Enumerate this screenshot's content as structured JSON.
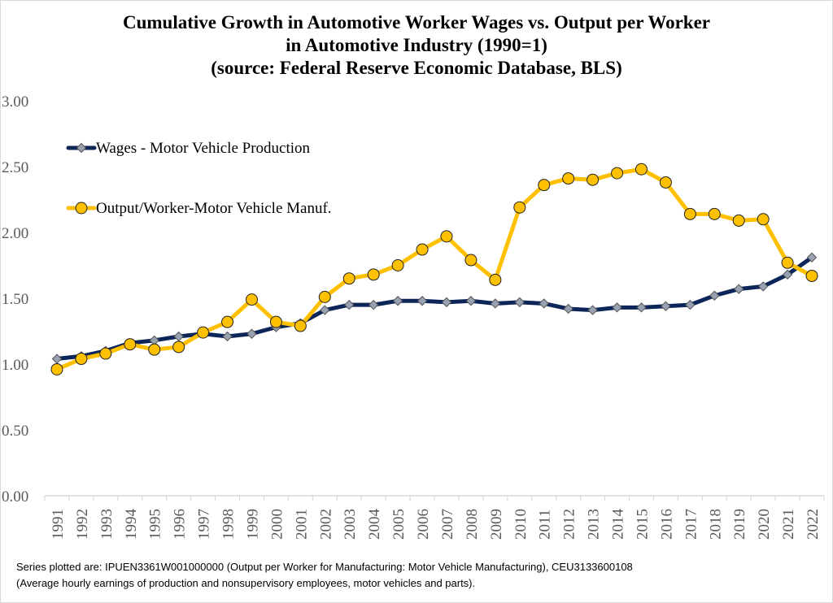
{
  "title_lines": [
    "Cumulative Growth in Automotive Worker Wages vs. Output per Worker",
    "in Automotive Industry (1990=1)",
    "(source: Federal Reserve Economic Database, BLS)"
  ],
  "footnote_lines": [
    "Series plotted are: IPUEN3361W001000000 (Output per Worker for Manufacturing: Motor Vehicle Manufacturing), CEU3133600108",
    "(Average hourly earnings of production and nonsupervisory employees, motor vehicles and parts)."
  ],
  "chart_data": {
    "type": "line",
    "title": "Cumulative Growth in Automotive Worker Wages vs. Output per Worker in Automotive Industry (1990=1) (source: Federal Reserve Economic Database, BLS)",
    "xlabel": "",
    "ylabel": "",
    "ylim": [
      0,
      3
    ],
    "yticks": [
      0,
      0.5,
      1,
      1.5,
      2,
      2.5,
      3
    ],
    "ytick_labels": [
      "0.00",
      "0.50",
      "1.00",
      "1.50",
      "2.00",
      "2.50",
      "3.00"
    ],
    "grid": false,
    "legend_position": "upper-left",
    "categories": [
      "1991",
      "1992",
      "1993",
      "1994",
      "1995",
      "1996",
      "1997",
      "1998",
      "1999",
      "2000",
      "2001",
      "2002",
      "2003",
      "2004",
      "2005",
      "2006",
      "2007",
      "2008",
      "2009",
      "2010",
      "2011",
      "2012",
      "2013",
      "2014",
      "2015",
      "2016",
      "2017",
      "2018",
      "2019",
      "2020",
      "2021",
      "2022"
    ],
    "series": [
      {
        "name": "Wages - Motor Vehicle Production",
        "line_color": "#0d2659",
        "marker": "diamond",
        "marker_color": "#98a2b3",
        "values": [
          1.04,
          1.06,
          1.1,
          1.16,
          1.18,
          1.21,
          1.23,
          1.21,
          1.23,
          1.28,
          1.31,
          1.41,
          1.45,
          1.45,
          1.48,
          1.48,
          1.47,
          1.48,
          1.46,
          1.47,
          1.46,
          1.42,
          1.41,
          1.43,
          1.43,
          1.44,
          1.45,
          1.52,
          1.57,
          1.59,
          1.68,
          1.81
        ]
      },
      {
        "name": "Output/Worker-Motor Vehicle Manuf.",
        "line_color": "#ffc000",
        "marker": "circle",
        "marker_color": "#ffc000",
        "values": [
          0.96,
          1.04,
          1.08,
          1.15,
          1.11,
          1.13,
          1.24,
          1.32,
          1.49,
          1.32,
          1.29,
          1.51,
          1.65,
          1.68,
          1.75,
          1.87,
          1.97,
          1.79,
          1.64,
          2.19,
          2.36,
          2.41,
          2.4,
          2.45,
          2.48,
          2.38,
          2.14,
          2.14,
          2.09,
          2.1,
          1.77,
          1.67
        ]
      }
    ]
  }
}
